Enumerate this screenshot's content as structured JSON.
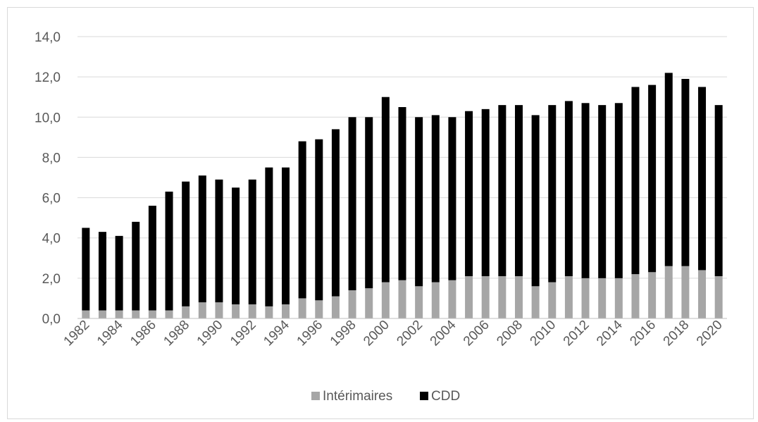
{
  "chart_data": {
    "type": "bar",
    "stacked": true,
    "title": "",
    "xlabel": "",
    "ylabel": "",
    "ylim": [
      0,
      14
    ],
    "yticks": [
      0,
      2,
      4,
      6,
      8,
      10,
      12,
      14
    ],
    "ytick_labels": [
      "0,0",
      "2,0",
      "4,0",
      "6,0",
      "8,0",
      "10,0",
      "12,0",
      "14,0"
    ],
    "grid": true,
    "legend": "bottom",
    "categories": [
      "1982",
      "1983",
      "1984",
      "1985",
      "1986",
      "1987",
      "1988",
      "1989",
      "1990",
      "1991",
      "1992",
      "1993",
      "1994",
      "1995",
      "1996",
      "1997",
      "1998",
      "1999",
      "2000",
      "2001",
      "2002",
      "2003",
      "2004",
      "2005",
      "2006",
      "2007",
      "2008",
      "2009",
      "2010",
      "2011",
      "2012",
      "2013",
      "2014",
      "2015",
      "2016",
      "2017",
      "2018",
      "2019",
      "2020"
    ],
    "x_tick_labels": [
      "1982",
      "1984",
      "1986",
      "1988",
      "1990",
      "1992",
      "1994",
      "1996",
      "1998",
      "2000",
      "2002",
      "2004",
      "2006",
      "2008",
      "2010",
      "2012",
      "2014",
      "2016",
      "2018",
      "2020"
    ],
    "series": [
      {
        "name": "Intérimaires",
        "color": "#a6a6a6",
        "values": [
          0.4,
          0.4,
          0.4,
          0.4,
          0.4,
          0.4,
          0.6,
          0.8,
          0.8,
          0.7,
          0.7,
          0.6,
          0.7,
          1.0,
          0.9,
          1.1,
          1.4,
          1.5,
          1.8,
          1.9,
          1.6,
          1.8,
          1.9,
          2.1,
          2.1,
          2.1,
          2.1,
          1.6,
          1.8,
          2.1,
          2.0,
          2.0,
          2.0,
          2.2,
          2.3,
          2.6,
          2.6,
          2.4,
          2.1
        ]
      },
      {
        "name": "CDD",
        "color": "#000000",
        "values": [
          4.1,
          3.9,
          3.7,
          4.4,
          5.2,
          5.9,
          6.2,
          6.3,
          6.1,
          5.8,
          6.2,
          6.9,
          6.8,
          7.8,
          8.0,
          8.3,
          8.6,
          8.5,
          9.2,
          8.6,
          8.4,
          8.3,
          8.1,
          8.2,
          8.3,
          8.5,
          8.5,
          8.5,
          8.8,
          8.7,
          8.7,
          8.6,
          8.7,
          9.3,
          9.3,
          9.6,
          9.3,
          9.1,
          8.5
        ]
      }
    ]
  }
}
